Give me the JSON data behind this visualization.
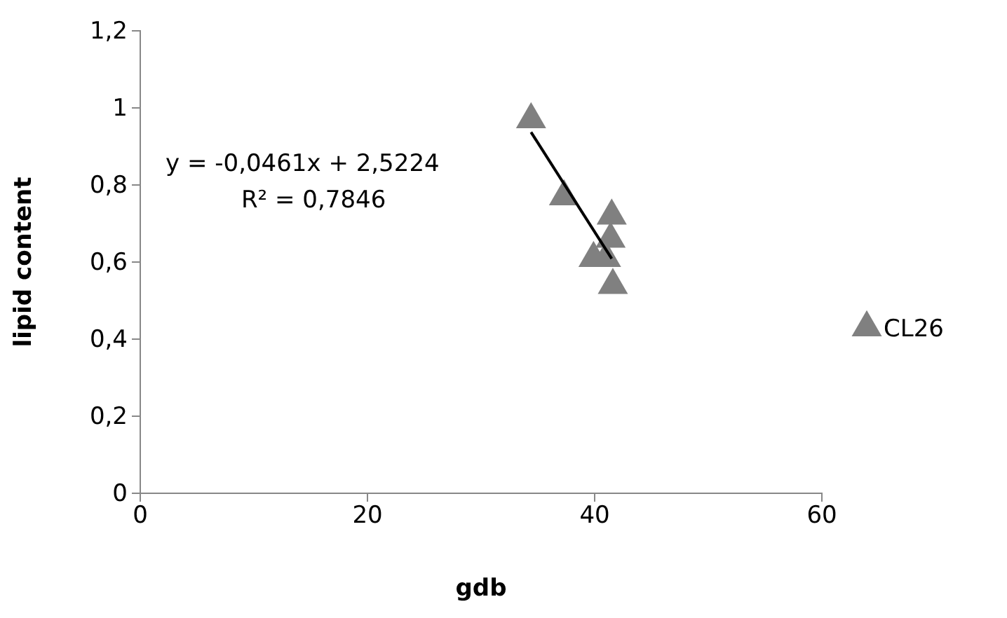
{
  "chart_data": {
    "type": "scatter",
    "xlabel": "gdb",
    "ylabel": "lipid content",
    "series": [
      {
        "name": "CL26",
        "color": "#808080",
        "marker": "triangle",
        "x": [
          34.4,
          37.3,
          41.5,
          41.4,
          39.9,
          41.0,
          41.6
        ],
        "values": [
          0.97,
          0.77,
          0.72,
          0.66,
          0.61,
          0.61,
          0.54
        ]
      },
      {
        "type": "line",
        "color": "#000000",
        "x": [
          34.4,
          41.5
        ],
        "values": [
          0.937,
          0.609
        ]
      }
    ],
    "annotations": [
      "y = -0,0461x + 2,5224",
      "R² = 0,7846"
    ],
    "xlim": [
      0,
      60
    ],
    "xticks": [
      0,
      20,
      40,
      60
    ],
    "ylim": [
      0,
      1.2
    ],
    "yticks": [
      0,
      {
        "value": 0.2,
        "label": "0,2"
      },
      {
        "value": 0.4,
        "label": "0,4"
      },
      {
        "value": 0.6,
        "label": "0,6"
      },
      {
        "value": 0.8,
        "label": "0,8"
      },
      1,
      {
        "value": 1.2,
        "label": "1,2"
      }
    ],
    "grid": false,
    "legend": "right"
  }
}
